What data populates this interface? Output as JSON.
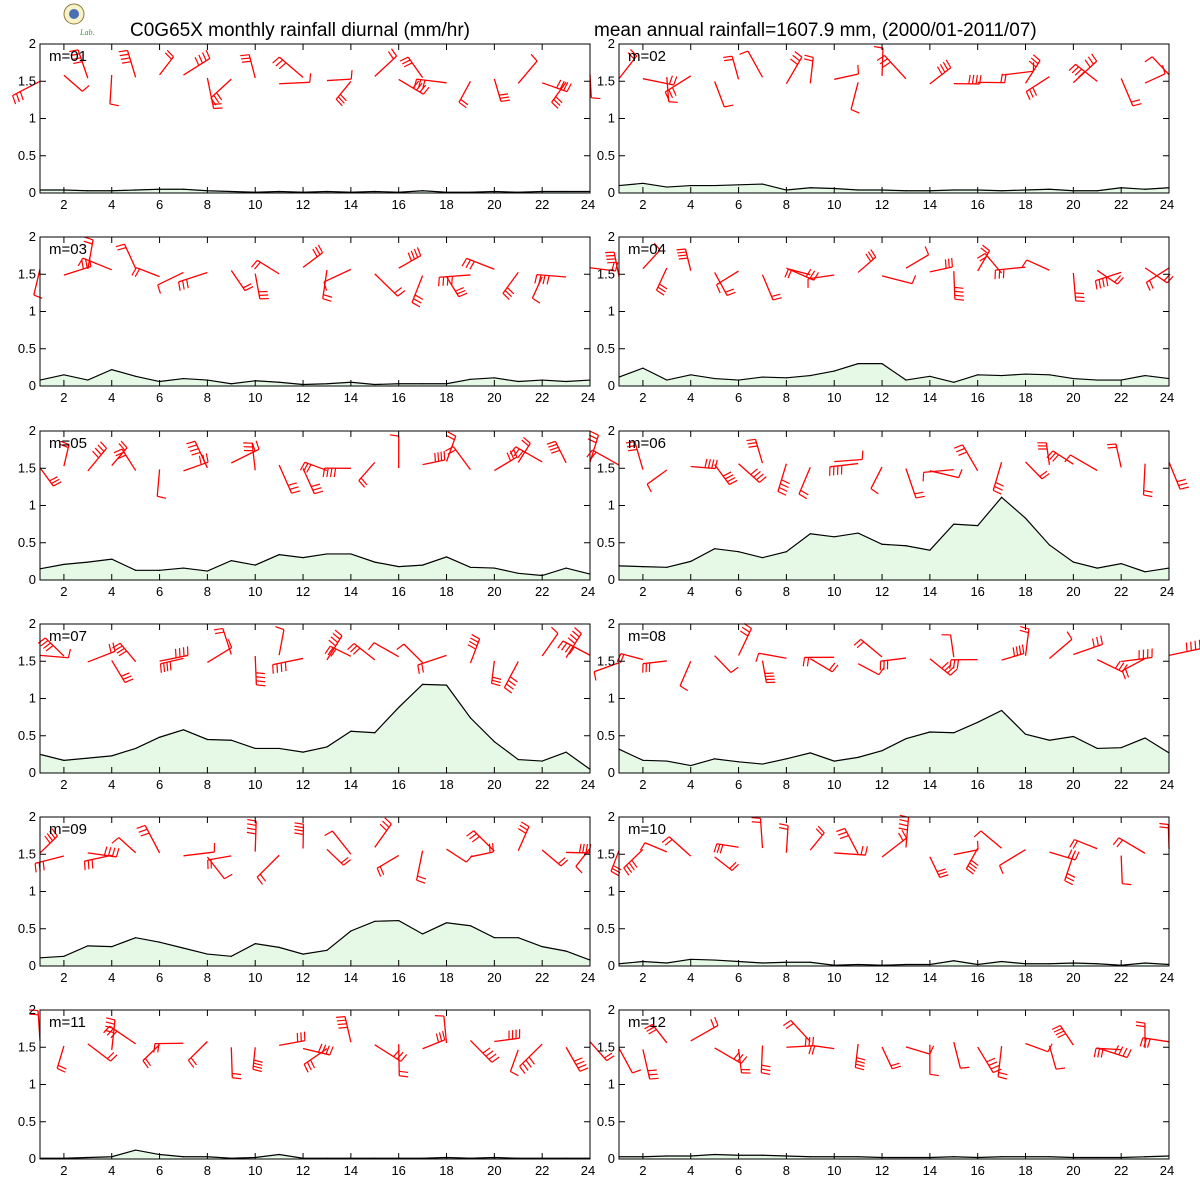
{
  "header": {
    "title_left": "C0G65X monthly rainfall diurnal (mm/hr)",
    "title_right": "mean annual rainfall=1607.9 mm, (2000/01-2011/07)",
    "logo_text": "Lab."
  },
  "colors": {
    "fill": "#e6f9e6",
    "line": "#000000",
    "barb": "#ff0000"
  },
  "chart_data": [
    {
      "type": "area",
      "label": "m=01",
      "x": [
        1,
        2,
        3,
        4,
        5,
        6,
        7,
        8,
        9,
        10,
        11,
        12,
        13,
        14,
        15,
        16,
        17,
        18,
        19,
        20,
        21,
        22,
        23,
        24
      ],
      "values": [
        0.04,
        0.04,
        0.03,
        0.03,
        0.04,
        0.05,
        0.05,
        0.03,
        0.02,
        0.01,
        0.02,
        0.01,
        0.02,
        0.01,
        0.02,
        0.01,
        0.03,
        0.01,
        0.01,
        0.02,
        0.01,
        0.02,
        0.02,
        0.02
      ],
      "ylim": [
        0,
        2
      ],
      "yticks": [
        0,
        0.5,
        1,
        1.5,
        2
      ],
      "xticks": [
        2,
        4,
        6,
        8,
        10,
        12,
        14,
        16,
        18,
        20,
        22,
        24
      ],
      "barbs": true
    },
    {
      "type": "area",
      "label": "m=02",
      "x": [
        1,
        2,
        3,
        4,
        5,
        6,
        7,
        8,
        9,
        10,
        11,
        12,
        13,
        14,
        15,
        16,
        17,
        18,
        19,
        20,
        21,
        22,
        23,
        24
      ],
      "values": [
        0.1,
        0.13,
        0.08,
        0.1,
        0.1,
        0.11,
        0.12,
        0.04,
        0.07,
        0.06,
        0.04,
        0.04,
        0.03,
        0.03,
        0.04,
        0.04,
        0.03,
        0.04,
        0.05,
        0.03,
        0.03,
        0.07,
        0.05,
        0.07
      ],
      "ylim": [
        0,
        2
      ],
      "yticks": [
        0,
        0.5,
        1,
        1.5,
        2
      ],
      "xticks": [
        2,
        4,
        6,
        8,
        10,
        12,
        14,
        16,
        18,
        20,
        22,
        24
      ],
      "barbs": true
    },
    {
      "type": "area",
      "label": "m=03",
      "x": [
        1,
        2,
        3,
        4,
        5,
        6,
        7,
        8,
        9,
        10,
        11,
        12,
        13,
        14,
        15,
        16,
        17,
        18,
        19,
        20,
        21,
        22,
        23,
        24
      ],
      "values": [
        0.08,
        0.15,
        0.08,
        0.22,
        0.13,
        0.06,
        0.1,
        0.08,
        0.03,
        0.07,
        0.05,
        0.02,
        0.03,
        0.05,
        0.02,
        0.03,
        0.03,
        0.03,
        0.09,
        0.11,
        0.06,
        0.08,
        0.06,
        0.08
      ],
      "ylim": [
        0,
        2
      ],
      "yticks": [
        0,
        0.5,
        1,
        1.5,
        2
      ],
      "xticks": [
        2,
        4,
        6,
        8,
        10,
        12,
        14,
        16,
        18,
        20,
        22,
        24
      ],
      "barbs": true
    },
    {
      "type": "area",
      "label": "m=04",
      "x": [
        1,
        2,
        3,
        4,
        5,
        6,
        7,
        8,
        9,
        10,
        11,
        12,
        13,
        14,
        15,
        16,
        17,
        18,
        19,
        20,
        21,
        22,
        23,
        24
      ],
      "values": [
        0.12,
        0.24,
        0.08,
        0.15,
        0.1,
        0.08,
        0.12,
        0.11,
        0.14,
        0.2,
        0.3,
        0.3,
        0.08,
        0.13,
        0.05,
        0.15,
        0.14,
        0.16,
        0.15,
        0.1,
        0.08,
        0.08,
        0.14,
        0.1
      ],
      "ylim": [
        0,
        2
      ],
      "yticks": [
        0,
        0.5,
        1,
        1.5,
        2
      ],
      "xticks": [
        2,
        4,
        6,
        8,
        10,
        12,
        14,
        16,
        18,
        20,
        22,
        24
      ],
      "barbs": true
    },
    {
      "type": "area",
      "label": "m=05",
      "x": [
        1,
        2,
        3,
        4,
        5,
        6,
        7,
        8,
        9,
        10,
        11,
        12,
        13,
        14,
        15,
        16,
        17,
        18,
        19,
        20,
        21,
        22,
        23,
        24
      ],
      "values": [
        0.15,
        0.21,
        0.24,
        0.28,
        0.13,
        0.13,
        0.16,
        0.12,
        0.26,
        0.2,
        0.34,
        0.3,
        0.35,
        0.35,
        0.24,
        0.18,
        0.2,
        0.31,
        0.17,
        0.16,
        0.09,
        0.06,
        0.16,
        0.08
      ],
      "ylim": [
        0,
        2
      ],
      "yticks": [
        0,
        0.5,
        1,
        1.5,
        2
      ],
      "xticks": [
        2,
        4,
        6,
        8,
        10,
        12,
        14,
        16,
        18,
        20,
        22,
        24
      ],
      "barbs": true
    },
    {
      "type": "area",
      "label": "m=06",
      "x": [
        1,
        2,
        3,
        4,
        5,
        6,
        7,
        8,
        9,
        10,
        11,
        12,
        13,
        14,
        15,
        16,
        17,
        18,
        19,
        20,
        21,
        22,
        23,
        24
      ],
      "values": [
        0.19,
        0.18,
        0.17,
        0.25,
        0.42,
        0.38,
        0.3,
        0.38,
        0.62,
        0.58,
        0.63,
        0.48,
        0.46,
        0.4,
        0.75,
        0.73,
        1.11,
        0.83,
        0.47,
        0.24,
        0.16,
        0.22,
        0.11,
        0.16
      ],
      "ylim": [
        0,
        2
      ],
      "yticks": [
        0,
        0.5,
        1,
        1.5,
        2
      ],
      "xticks": [
        2,
        4,
        6,
        8,
        10,
        12,
        14,
        16,
        18,
        20,
        22,
        24
      ],
      "barbs": true
    },
    {
      "type": "area",
      "label": "m=07",
      "x": [
        1,
        2,
        3,
        4,
        5,
        6,
        7,
        8,
        9,
        10,
        11,
        12,
        13,
        14,
        15,
        16,
        17,
        18,
        19,
        20,
        21,
        22,
        23,
        24
      ],
      "values": [
        0.25,
        0.17,
        0.2,
        0.23,
        0.33,
        0.48,
        0.58,
        0.45,
        0.44,
        0.33,
        0.33,
        0.28,
        0.35,
        0.56,
        0.54,
        0.88,
        1.19,
        1.18,
        0.74,
        0.42,
        0.18,
        0.16,
        0.28,
        0.05
      ],
      "ylim": [
        0,
        2
      ],
      "yticks": [
        0,
        0.5,
        1,
        1.5,
        2
      ],
      "xticks": [
        2,
        4,
        6,
        8,
        10,
        12,
        14,
        16,
        18,
        20,
        22,
        24
      ],
      "barbs": true
    },
    {
      "type": "area",
      "label": "m=08",
      "x": [
        1,
        2,
        3,
        4,
        5,
        6,
        7,
        8,
        9,
        10,
        11,
        12,
        13,
        14,
        15,
        16,
        17,
        18,
        19,
        20,
        21,
        22,
        23,
        24
      ],
      "values": [
        0.32,
        0.17,
        0.16,
        0.1,
        0.19,
        0.15,
        0.12,
        0.19,
        0.27,
        0.16,
        0.21,
        0.3,
        0.46,
        0.55,
        0.54,
        0.68,
        0.84,
        0.52,
        0.44,
        0.49,
        0.33,
        0.34,
        0.47,
        0.27
      ],
      "ylim": [
        0,
        2
      ],
      "yticks": [
        0,
        0.5,
        1,
        1.5,
        2
      ],
      "xticks": [
        2,
        4,
        6,
        8,
        10,
        12,
        14,
        16,
        18,
        20,
        22,
        24
      ],
      "barbs": true
    },
    {
      "type": "area",
      "label": "m=09",
      "x": [
        1,
        2,
        3,
        4,
        5,
        6,
        7,
        8,
        9,
        10,
        11,
        12,
        13,
        14,
        15,
        16,
        17,
        18,
        19,
        20,
        21,
        22,
        23,
        24
      ],
      "values": [
        0.11,
        0.13,
        0.27,
        0.26,
        0.38,
        0.32,
        0.24,
        0.16,
        0.13,
        0.3,
        0.25,
        0.16,
        0.21,
        0.47,
        0.6,
        0.61,
        0.43,
        0.58,
        0.54,
        0.38,
        0.38,
        0.26,
        0.2,
        0.08
      ],
      "ylim": [
        0,
        2
      ],
      "yticks": [
        0,
        0.5,
        1,
        1.5,
        2
      ],
      "xticks": [
        2,
        4,
        6,
        8,
        10,
        12,
        14,
        16,
        18,
        20,
        22,
        24
      ],
      "barbs": true
    },
    {
      "type": "area",
      "label": "m=10",
      "x": [
        1,
        2,
        3,
        4,
        5,
        6,
        7,
        8,
        9,
        10,
        11,
        12,
        13,
        14,
        15,
        16,
        17,
        18,
        19,
        20,
        21,
        22,
        23,
        24
      ],
      "values": [
        0.03,
        0.06,
        0.04,
        0.09,
        0.08,
        0.06,
        0.04,
        0.05,
        0.05,
        0.01,
        0.02,
        0.01,
        0.02,
        0.02,
        0.07,
        0.02,
        0.06,
        0.03,
        0.03,
        0.04,
        0.03,
        0.01,
        0.04,
        0.02
      ],
      "ylim": [
        0,
        2
      ],
      "yticks": [
        0,
        0.5,
        1,
        1.5,
        2
      ],
      "xticks": [
        2,
        4,
        6,
        8,
        10,
        12,
        14,
        16,
        18,
        20,
        22,
        24
      ],
      "barbs": true
    },
    {
      "type": "area",
      "label": "m=11",
      "x": [
        1,
        2,
        3,
        4,
        5,
        6,
        7,
        8,
        9,
        10,
        11,
        12,
        13,
        14,
        15,
        16,
        17,
        18,
        19,
        20,
        21,
        22,
        23,
        24
      ],
      "values": [
        0.01,
        0.01,
        0.02,
        0.03,
        0.12,
        0.06,
        0.03,
        0.03,
        0.01,
        0.02,
        0.06,
        0.01,
        0.01,
        0.01,
        0.01,
        0.01,
        0.01,
        0.02,
        0.01,
        0.02,
        0.01,
        0.01,
        0.01,
        0.01
      ],
      "ylim": [
        0,
        2
      ],
      "yticks": [
        0,
        0.5,
        1,
        1.5,
        2
      ],
      "xticks": [
        2,
        4,
        6,
        8,
        10,
        12,
        14,
        16,
        18,
        20,
        22,
        24
      ],
      "barbs": true
    },
    {
      "type": "area",
      "label": "m=12",
      "x": [
        1,
        2,
        3,
        4,
        5,
        6,
        7,
        8,
        9,
        10,
        11,
        12,
        13,
        14,
        15,
        16,
        17,
        18,
        19,
        20,
        21,
        22,
        23,
        24
      ],
      "values": [
        0.03,
        0.03,
        0.04,
        0.04,
        0.06,
        0.05,
        0.05,
        0.04,
        0.03,
        0.03,
        0.03,
        0.02,
        0.02,
        0.02,
        0.03,
        0.02,
        0.03,
        0.03,
        0.03,
        0.02,
        0.02,
        0.02,
        0.03,
        0.04
      ],
      "ylim": [
        0,
        2
      ],
      "yticks": [
        0,
        0.5,
        1,
        1.5,
        2
      ],
      "xticks": [
        2,
        4,
        6,
        8,
        10,
        12,
        14,
        16,
        18,
        20,
        22,
        24
      ],
      "barbs": true
    }
  ]
}
